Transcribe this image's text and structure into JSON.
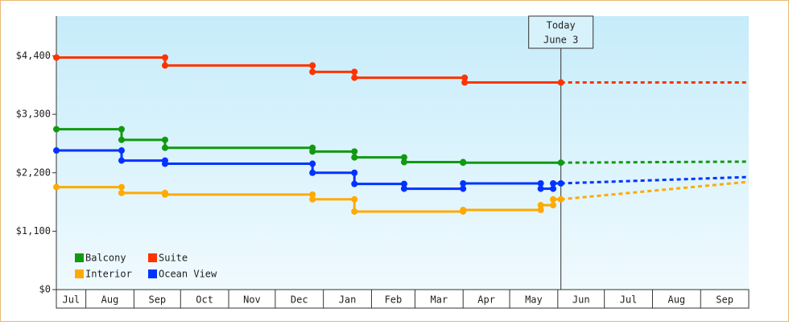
{
  "chart_data": {
    "type": "step-line",
    "ylim": [
      0,
      5150
    ],
    "yticks": [
      {
        "value": 0,
        "label": "$0"
      },
      {
        "value": 1100,
        "label": "$1,100"
      },
      {
        "value": 2200,
        "label": "$2,200"
      },
      {
        "value": 3300,
        "label": "$3,300"
      },
      {
        "value": 4400,
        "label": "$4,400"
      }
    ],
    "xlim": [
      0,
      446
    ],
    "xticks": [
      {
        "value": 0,
        "label": "Jul"
      },
      {
        "value": 19,
        "label": "Aug"
      },
      {
        "value": 50,
        "label": "Sep"
      },
      {
        "value": 80,
        "label": "Oct"
      },
      {
        "value": 111,
        "label": "Nov"
      },
      {
        "value": 141,
        "label": "Dec"
      },
      {
        "value": 172,
        "label": "Jan"
      },
      {
        "value": 203,
        "label": "Feb"
      },
      {
        "value": 231,
        "label": "Mar"
      },
      {
        "value": 262,
        "label": "Apr"
      },
      {
        "value": 292,
        "label": "May"
      },
      {
        "value": 323,
        "label": "Jun"
      },
      {
        "value": 353,
        "label": "Jul"
      },
      {
        "value": 384,
        "label": "Aug"
      },
      {
        "value": 415,
        "label": "Sep"
      }
    ],
    "annotation": {
      "x": 325,
      "lines": [
        "Today",
        "June 3"
      ]
    },
    "series": [
      {
        "name": "Balcony",
        "color": "#119911",
        "x": [
          0,
          42,
          70,
          165,
          192,
          224,
          262,
          325
        ],
        "values": [
          3020,
          2820,
          2670,
          2600,
          2490,
          2400,
          2390,
          2390
        ],
        "forecast": {
          "x": [
            325,
            446
          ],
          "values": [
            2390,
            2410
          ]
        }
      },
      {
        "name": "Suite",
        "color": "#ff3300",
        "x": [
          0,
          70,
          165,
          192,
          263,
          325
        ],
        "values": [
          4370,
          4220,
          4100,
          3990,
          3900,
          3900
        ],
        "forecast": {
          "x": [
            325,
            446
          ],
          "values": [
            3900,
            3900
          ]
        }
      },
      {
        "name": "Interior",
        "color": "#ffaa00",
        "x": [
          0,
          42,
          70,
          165,
          192,
          262,
          312,
          320,
          325
        ],
        "values": [
          1930,
          1820,
          1790,
          1700,
          1470,
          1500,
          1590,
          1700,
          1700
        ],
        "forecast": {
          "x": [
            325,
            446
          ],
          "values": [
            1700,
            2030
          ]
        }
      },
      {
        "name": "Ocean View",
        "color": "#0033ff",
        "x": [
          0,
          42,
          70,
          165,
          192,
          224,
          262,
          312,
          320,
          325
        ],
        "values": [
          2620,
          2430,
          2370,
          2200,
          1990,
          1900,
          2000,
          1900,
          2000,
          2000
        ],
        "forecast": {
          "x": [
            325,
            446
          ],
          "values": [
            2000,
            2120
          ]
        }
      }
    ]
  }
}
